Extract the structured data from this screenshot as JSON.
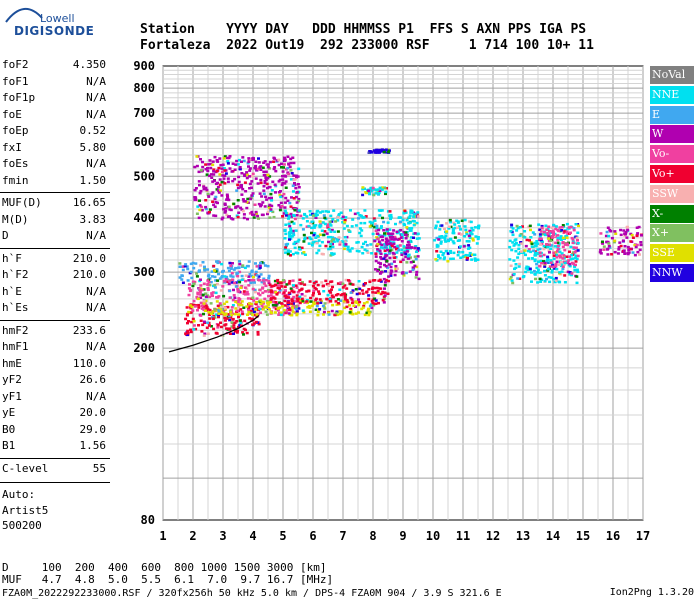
{
  "logo": {
    "top": "Lowell",
    "main": "DIGISONDE"
  },
  "header": {
    "row1": "Station    YYYY DAY   DDD HHMMSS P1  FFS S AXN PPS IGA PS",
    "row2": "Fortaleza  2022 Out19  292 233000 RSF     1 714 100 10+ 11"
  },
  "params": [
    {
      "k": "foF2",
      "v": "4.350"
    },
    {
      "k": "foF1",
      "v": "N/A"
    },
    {
      "k": "foF1p",
      "v": "N/A"
    },
    {
      "k": "foE",
      "v": "N/A"
    },
    {
      "k": "foEp",
      "v": "0.52"
    },
    {
      "k": "fxI",
      "v": "5.80"
    },
    {
      "k": "foEs",
      "v": "N/A"
    },
    {
      "k": "fmin",
      "v": "1.50"
    },
    {
      "k": "MUF(D)",
      "v": "16.65"
    },
    {
      "k": "M(D)",
      "v": "3.83"
    },
    {
      "k": "D",
      "v": "N/A"
    },
    {
      "k": "h`F",
      "v": "210.0"
    },
    {
      "k": "h`F2",
      "v": "210.0"
    },
    {
      "k": "h`E",
      "v": "N/A"
    },
    {
      "k": "h`Es",
      "v": "N/A"
    },
    {
      "k": "hmF2",
      "v": "233.6"
    },
    {
      "k": "hmF1",
      "v": "N/A"
    },
    {
      "k": "hmE",
      "v": "110.0"
    },
    {
      "k": "yF2",
      "v": "26.6"
    },
    {
      "k": "yF1",
      "v": "N/A"
    },
    {
      "k": "yE",
      "v": "20.0"
    },
    {
      "k": "B0",
      "v": "29.0"
    },
    {
      "k": "B1",
      "v": "1.56"
    },
    {
      "k": "C-level",
      "v": "55"
    }
  ],
  "auto": {
    "l1": "Auto:",
    "l2": "Artist5",
    "l3": "500200"
  },
  "legend": [
    {
      "label": "NoVal",
      "color": "#808080"
    },
    {
      "label": "NNE",
      "color": "#00e0f0"
    },
    {
      "label": "E",
      "color": "#40a8f0"
    },
    {
      "label": "W",
      "color": "#b000b0"
    },
    {
      "label": "Vo-",
      "color": "#f040a0"
    },
    {
      "label": "Vo+",
      "color": "#f00030"
    },
    {
      "label": "SSW",
      "color": "#f8b0b0"
    },
    {
      "label": "X-",
      "color": "#008000"
    },
    {
      "label": "X+",
      "color": "#80c060"
    },
    {
      "label": "SSE",
      "color": "#e0e000"
    },
    {
      "label": "NNW",
      "color": "#2000e0"
    }
  ],
  "chart_data": {
    "type": "scatter",
    "title": "",
    "xlabel": "",
    "ylabel": "",
    "xlim": [
      1,
      17
    ],
    "ylim": [
      80,
      900
    ],
    "xticks": [
      1,
      2,
      3,
      4,
      5,
      6,
      7,
      8,
      9,
      10,
      11,
      12,
      13,
      14,
      15,
      16,
      17
    ],
    "yticks": [
      80,
      200,
      300,
      400,
      500,
      600,
      700,
      800,
      900
    ],
    "y_scale": "log",
    "grid": true,
    "legend_position": "right",
    "trace_curve": [
      [
        1.2,
        196
      ],
      [
        2.0,
        203
      ],
      [
        2.8,
        212
      ],
      [
        3.5,
        222
      ],
      [
        4.0,
        232
      ],
      [
        4.2,
        238
      ]
    ],
    "clusters": [
      {
        "name": "E",
        "x": [
          1.5,
          4.5
        ],
        "y": [
          285,
          320
        ]
      },
      {
        "name": "Vo+",
        "x": [
          1.7,
          4.2
        ],
        "y": [
          215,
          255
        ]
      },
      {
        "name": "Vo-",
        "x": [
          1.8,
          5.5
        ],
        "y": [
          240,
          290
        ]
      },
      {
        "name": "SSE",
        "x": [
          2.3,
          8.0
        ],
        "y": [
          240,
          260
        ]
      },
      {
        "name": "Vo+",
        "x": [
          4.5,
          8.5
        ],
        "y": [
          255,
          290
        ]
      },
      {
        "name": "W",
        "x": [
          2.0,
          5.5
        ],
        "y": [
          400,
          560
        ]
      },
      {
        "name": "NNE",
        "x": [
          7.6,
          8.4
        ],
        "y": [
          455,
          475
        ]
      },
      {
        "name": "NNW",
        "x": [
          7.8,
          8.5
        ],
        "y": [
          570,
          580
        ]
      },
      {
        "name": "NNE",
        "x": [
          5.0,
          9.5
        ],
        "y": [
          330,
          420
        ]
      },
      {
        "name": "W",
        "x": [
          8.0,
          9.5
        ],
        "y": [
          290,
          380
        ]
      },
      {
        "name": "NNE",
        "x": [
          10.0,
          11.5
        ],
        "y": [
          320,
          400
        ]
      },
      {
        "name": "NNE",
        "x": [
          12.5,
          14.8
        ],
        "y": [
          285,
          390
        ]
      },
      {
        "name": "Vo-",
        "x": [
          13.5,
          14.8
        ],
        "y": [
          310,
          385
        ]
      },
      {
        "name": "W",
        "x": [
          15.5,
          16.9
        ],
        "y": [
          330,
          385
        ]
      }
    ]
  },
  "footer": {
    "line1": "D     100  200  400  600  800 1000 1500 3000 [km]",
    "line2": "MUF   4.7  4.8  5.0  5.5  6.1  7.0  9.7 16.7 [MHz]",
    "line3": "FZA0M_2022292233000.RSF / 320fx256h 50 kHz 5.0 km / DPS-4 FZA0M 904 / 3.9 S 321.6 E",
    "version": "Ion2Png 1.3.20"
  }
}
